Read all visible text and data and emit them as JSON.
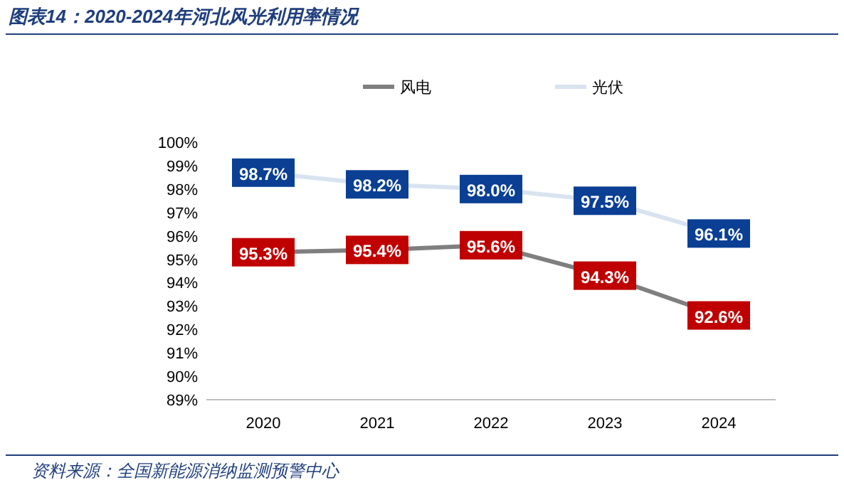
{
  "chart_data": {
    "type": "line",
    "title": "图表14：2020-2024年河北风光利用率情况",
    "categories": [
      "2020",
      "2021",
      "2022",
      "2023",
      "2024"
    ],
    "series": [
      {
        "name": "风电",
        "color": "#7f7f7f",
        "values": [
          95.3,
          95.4,
          95.6,
          94.3,
          92.6
        ],
        "value_labels": [
          "95.3%",
          "95.4%",
          "95.6%",
          "94.3%",
          "92.6%"
        ]
      },
      {
        "name": "光伏",
        "color": "#d9e3f0",
        "values": [
          98.7,
          98.2,
          98.0,
          97.5,
          96.1
        ],
        "value_labels": [
          "98.7%",
          "98.2%",
          "98.0%",
          "97.5%",
          "96.1%"
        ]
      }
    ],
    "ylim": [
      89,
      100
    ],
    "yticks": [
      {
        "value": 89,
        "label": "89%"
      },
      {
        "value": 90,
        "label": "90%"
      },
      {
        "value": 91,
        "label": "91%"
      },
      {
        "value": 92,
        "label": "92%"
      },
      {
        "value": 93,
        "label": "93%"
      },
      {
        "value": 94,
        "label": "94%"
      },
      {
        "value": 95,
        "label": "95%"
      },
      {
        "value": 96,
        "label": "96%"
      },
      {
        "value": 97,
        "label": "97%"
      },
      {
        "value": 98,
        "label": "98%"
      },
      {
        "value": 99,
        "label": "99%"
      },
      {
        "value": 100,
        "label": "100%"
      }
    ],
    "legend": "top",
    "grid": false,
    "marker": "square",
    "line_style": "solid",
    "annotations": [
      "资料来源：全国新能源消纳监测预警中心"
    ]
  }
}
